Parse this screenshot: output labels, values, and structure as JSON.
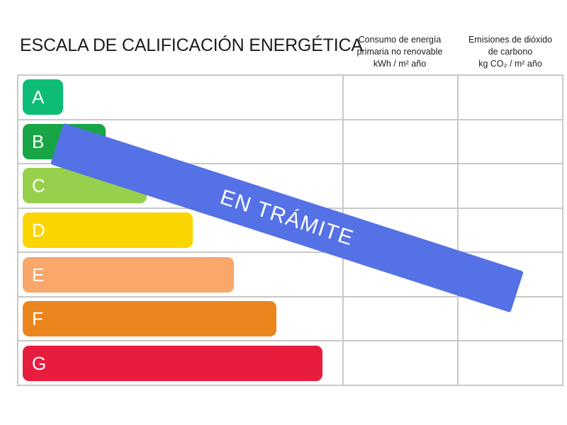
{
  "title": "ESCALA DE CALIFICACIÓN ENERGÉTICA",
  "columns": [
    {
      "lines": [
        "Consumo de energía",
        "primaria no renovable",
        "kWh / m² año"
      ]
    },
    {
      "lines": [
        "Emisiones de dióxido",
        "de carbono",
        "kg CO₂ / m² año"
      ]
    }
  ],
  "banner": {
    "label": "EN TRÁMITE",
    "color": "#5571e6",
    "text_color": "#ffffff"
  },
  "grid_color": "#c9c9c9",
  "chart_data": {
    "type": "bar",
    "title": "ESCALA DE CALIFICACIÓN ENERGÉTICA",
    "categories": [
      "A",
      "B",
      "C",
      "D",
      "E",
      "F",
      "G"
    ],
    "values": [
      57,
      117,
      175,
      240,
      298,
      358,
      423
    ],
    "colors": [
      "#0dbd76",
      "#17a546",
      "#96d04d",
      "#fbd501",
      "#f9a76a",
      "#eb861f",
      "#e81d3e"
    ],
    "columns": [
      "Consumo de energía primaria no renovable kWh / m² año",
      "Emisiones de dióxido de carbono kg CO₂ / m² año"
    ],
    "cell_values": [],
    "annotation": "EN TRÁMITE",
    "legend": "none",
    "grid": "on"
  }
}
